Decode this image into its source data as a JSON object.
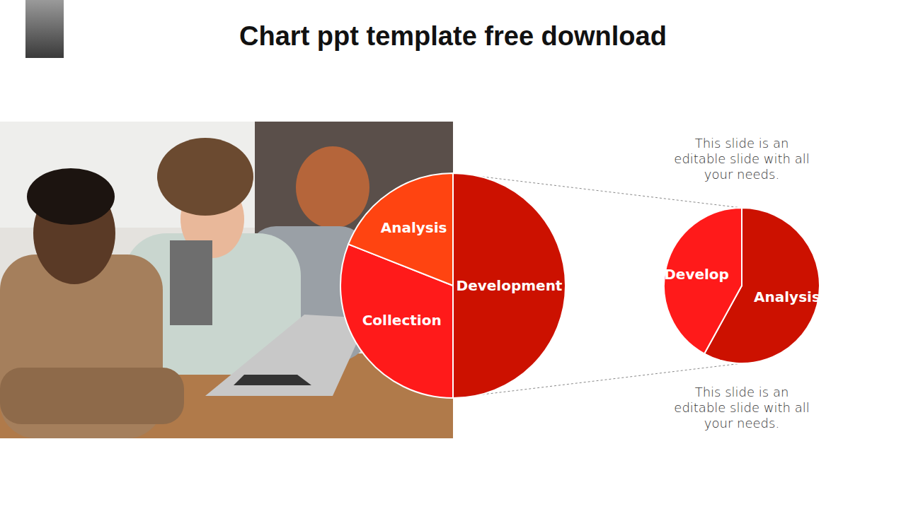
{
  "title": "Chart ppt template free download",
  "notes": [
    "This slide is an editable slide with all your needs.",
    "This slide is an editable slide with all your needs."
  ],
  "chart_data": [
    {
      "type": "pie",
      "categories": [
        "Development",
        "Collection",
        "Analysis"
      ],
      "values": [
        50,
        31,
        19
      ],
      "colors": [
        "#cc1100",
        "#ff1a1a",
        "#ff4411"
      ]
    },
    {
      "type": "pie",
      "categories": [
        "Analysis",
        "Develop"
      ],
      "values": [
        58,
        42
      ],
      "colors": [
        "#cc1100",
        "#ff1a1a"
      ]
    }
  ]
}
